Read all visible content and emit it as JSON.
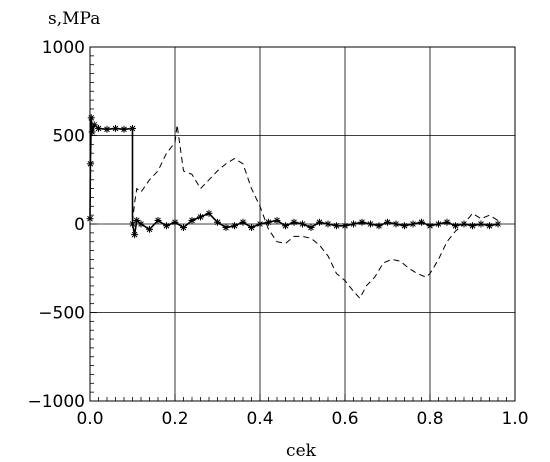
{
  "chart_data": {
    "type": "line",
    "title": "",
    "xlabel": "cek",
    "ylabel": "s,MPa",
    "xlim": [
      0.0,
      1.0
    ],
    "ylim": [
      -1000,
      1000
    ],
    "x_ticks": [
      0.0,
      0.2,
      0.4,
      0.6,
      0.8,
      1.0
    ],
    "x_tick_labels": [
      "0.0",
      "0.2",
      "0.4",
      "0.6",
      "0.8",
      "1.0"
    ],
    "y_ticks": [
      -1000,
      -500,
      0,
      500,
      1000
    ],
    "y_tick_labels": [
      "−1000",
      "−500",
      "0",
      "500",
      "1000"
    ],
    "grid": true,
    "series": [
      {
        "style": "solid-with-asterisk-markers",
        "color": "#000000",
        "x": [
          0.0,
          0.001,
          0.003,
          0.005,
          0.01,
          0.02,
          0.04,
          0.06,
          0.08,
          0.1,
          0.1,
          0.105,
          0.11,
          0.12,
          0.14,
          0.16,
          0.18,
          0.2,
          0.22,
          0.24,
          0.26,
          0.28,
          0.3,
          0.32,
          0.34,
          0.36,
          0.38,
          0.4,
          0.42,
          0.44,
          0.46,
          0.48,
          0.5,
          0.52,
          0.54,
          0.56,
          0.58,
          0.6,
          0.62,
          0.64,
          0.66,
          0.68,
          0.7,
          0.72,
          0.74,
          0.76,
          0.78,
          0.8,
          0.82,
          0.84,
          0.86,
          0.88,
          0.9,
          0.92,
          0.94,
          0.96
        ],
        "y": [
          30,
          340,
          600,
          520,
          560,
          540,
          535,
          540,
          535,
          540,
          0,
          -60,
          20,
          0,
          -30,
          20,
          -10,
          10,
          -20,
          20,
          40,
          60,
          10,
          -20,
          -10,
          10,
          -20,
          0,
          10,
          20,
          -10,
          10,
          0,
          -20,
          10,
          0,
          -10,
          -10,
          0,
          10,
          0,
          -10,
          10,
          0,
          -10,
          0,
          10,
          -10,
          0,
          10,
          -10,
          0,
          -10,
          0,
          -10,
          0
        ]
      },
      {
        "style": "dashed",
        "color": "#000000",
        "x": [
          0.1,
          0.105,
          0.11,
          0.12,
          0.14,
          0.16,
          0.18,
          0.2,
          0.205,
          0.21,
          0.22,
          0.24,
          0.26,
          0.28,
          0.3,
          0.32,
          0.34,
          0.36,
          0.38,
          0.4,
          0.42,
          0.44,
          0.46,
          0.48,
          0.5,
          0.52,
          0.54,
          0.56,
          0.58,
          0.6,
          0.62,
          0.635,
          0.65,
          0.67,
          0.69,
          0.71,
          0.73,
          0.75,
          0.77,
          0.79,
          0.8,
          0.82,
          0.84,
          0.86,
          0.88,
          0.9,
          0.92,
          0.94,
          0.96
        ],
        "y": [
          10,
          120,
          200,
          180,
          250,
          300,
          400,
          460,
          560,
          470,
          300,
          280,
          200,
          250,
          300,
          340,
          370,
          340,
          200,
          100,
          -30,
          -100,
          -110,
          -70,
          -70,
          -80,
          -120,
          -180,
          -280,
          -320,
          -380,
          -420,
          -350,
          -300,
          -220,
          -200,
          -210,
          -250,
          -280,
          -300,
          -280,
          -200,
          -100,
          -40,
          0,
          60,
          30,
          50,
          20
        ]
      }
    ]
  }
}
